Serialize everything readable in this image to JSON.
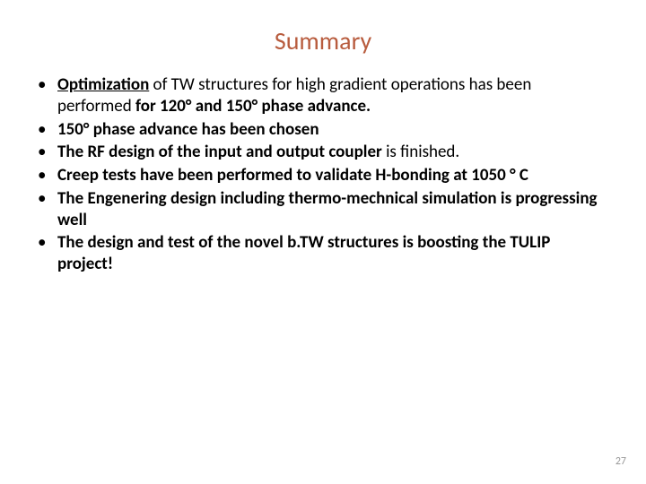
{
  "slide": {
    "title": "Summary",
    "title_color": "#b85c3e",
    "title_fontsize": 28,
    "background_color": "#ffffff",
    "body_fontsize": 19,
    "body_color": "#000000",
    "bullets": [
      {
        "parts": [
          {
            "text": "Optimization",
            "underline": true,
            "bold": true
          },
          {
            "text": " of TW structures for high gradient operations has been performed ",
            "bold": false
          },
          {
            "text": "for 120° and 150° phase advance.",
            "bold": true
          }
        ]
      },
      {
        "parts": [
          {
            "text": "150° phase advance has been chosen",
            "bold": true
          }
        ]
      },
      {
        "parts": [
          {
            "text": "The RF design of the input and output coupler",
            "bold": true
          },
          {
            "text": " is finished.",
            "bold": false
          }
        ]
      },
      {
        "parts": [
          {
            "text": "Creep tests have been performed to validate H-bonding at 1050 ° C",
            "bold": true
          }
        ]
      },
      {
        "parts": [
          {
            "text": "The Engenering design including  thermo-mechnical simulation is progressing well",
            "bold": true
          }
        ]
      },
      {
        "parts": [
          {
            "text": "The design and test of the novel b.TW structures is boosting the TULIP project!",
            "bold": true
          }
        ]
      }
    ],
    "page_number": "27",
    "page_number_color": "#999999",
    "page_number_fontsize": 12
  }
}
